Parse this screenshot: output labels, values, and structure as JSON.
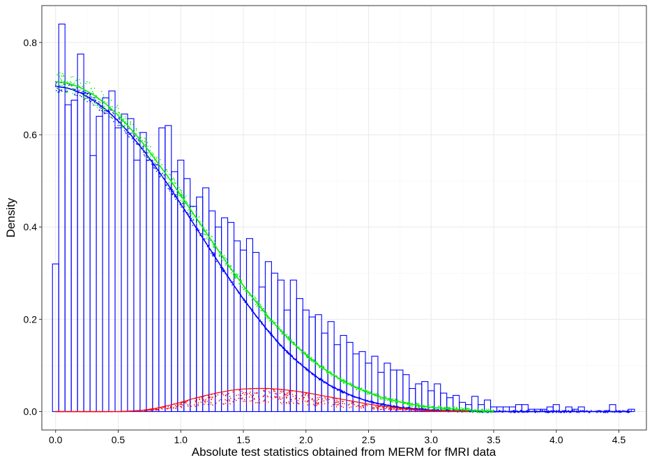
{
  "chart_data": {
    "type": "bar",
    "title": "",
    "xlabel": "Absolute test statistics obtained from MERM for fMRI data",
    "ylabel": "Density",
    "xlim": [
      -0.11,
      4.72
    ],
    "ylim": [
      -0.04,
      0.88
    ],
    "x_ticks": [
      0.0,
      0.5,
      1.0,
      1.5,
      2.0,
      2.5,
      3.0,
      3.5,
      4.0,
      4.5
    ],
    "x_tick_labels": [
      "0.0",
      "0.5",
      "1.0",
      "1.5",
      "2.0",
      "2.5",
      "3.0",
      "3.5",
      "4.0",
      "4.5"
    ],
    "y_ticks": [
      0.0,
      0.2,
      0.4,
      0.6,
      0.8
    ],
    "y_tick_labels": [
      "0.0",
      "0.2",
      "0.4",
      "0.6",
      "0.8"
    ],
    "grid": true,
    "legend": "none",
    "colors": {
      "histogram": "#0000ff",
      "blue_curve": "#0000ff",
      "green_curve": "#00ee00",
      "red_curve": "#ff0000",
      "grid_major": "#ebebeb",
      "grid_minor": "#f5f5f5"
    },
    "histogram": {
      "bin_width": 0.05,
      "bin_start": -0.025,
      "densities": [
        0.32,
        0.84,
        0.665,
        0.675,
        0.775,
        0.69,
        0.555,
        0.64,
        0.68,
        0.695,
        0.615,
        0.645,
        0.635,
        0.545,
        0.605,
        0.545,
        0.535,
        0.615,
        0.62,
        0.52,
        0.545,
        0.505,
        0.445,
        0.465,
        0.485,
        0.435,
        0.4,
        0.42,
        0.41,
        0.37,
        0.35,
        0.375,
        0.345,
        0.27,
        0.325,
        0.3,
        0.285,
        0.22,
        0.285,
        0.245,
        0.22,
        0.205,
        0.21,
        0.17,
        0.195,
        0.145,
        0.165,
        0.15,
        0.125,
        0.13,
        0.105,
        0.12,
        0.085,
        0.105,
        0.09,
        0.09,
        0.08,
        0.05,
        0.06,
        0.065,
        0.045,
        0.06,
        0.04,
        0.03,
        0.035,
        0.02,
        0.015,
        0.033,
        0.015,
        0.025,
        0.01,
        0.01,
        0.01,
        0.01,
        0.015,
        0.015,
        0.005,
        0.005,
        0.005,
        0.01,
        0.015,
        0.0,
        0.01,
        0.005,
        0.01,
        0.0,
        0.0,
        0.0,
        0.0,
        0.015,
        0.0,
        0.0,
        0.005
      ]
    },
    "series": [
      {
        "color": "blue",
        "x": [
          0.0,
          0.1,
          0.2,
          0.3,
          0.4,
          0.5,
          0.6,
          0.7,
          0.8,
          0.9,
          1.0,
          1.1,
          1.2,
          1.3,
          1.4,
          1.5,
          1.6,
          1.7,
          1.8,
          1.9,
          2.0,
          2.1,
          2.2,
          2.3,
          2.4,
          2.5,
          2.6,
          2.7,
          2.8,
          2.9,
          3.0,
          3.1,
          3.2,
          3.3,
          3.4,
          3.5,
          3.6,
          3.7,
          3.8,
          3.9,
          4.0,
          4.1,
          4.2,
          4.3,
          4.4,
          4.5,
          4.6
        ],
        "y": [
          0.705,
          0.701,
          0.691,
          0.675,
          0.655,
          0.63,
          0.6,
          0.567,
          0.53,
          0.491,
          0.45,
          0.408,
          0.366,
          0.324,
          0.283,
          0.244,
          0.208,
          0.174,
          0.143,
          0.116,
          0.093,
          0.072,
          0.055,
          0.042,
          0.031,
          0.022,
          0.016,
          0.011,
          0.007,
          0.005,
          0.003,
          0.002,
          0.001,
          0.001,
          0.0,
          0.0,
          0.0,
          0.0,
          0.0,
          0.0,
          0.0,
          0.0,
          0.0,
          0.0,
          0.0,
          0.0,
          0.0
        ]
      },
      {
        "color": "green",
        "x": [
          0.0,
          0.1,
          0.2,
          0.3,
          0.4,
          0.5,
          0.6,
          0.7,
          0.8,
          0.9,
          1.0,
          1.1,
          1.2,
          1.3,
          1.4,
          1.5,
          1.6,
          1.7,
          1.8,
          1.9,
          2.0,
          2.1,
          2.2,
          2.3,
          2.4,
          2.5,
          2.6,
          2.7,
          2.8,
          2.9,
          3.0,
          3.1,
          3.2,
          3.3,
          3.4,
          3.5
        ],
        "y": [
          0.715,
          0.712,
          0.702,
          0.687,
          0.667,
          0.642,
          0.613,
          0.581,
          0.545,
          0.508,
          0.469,
          0.429,
          0.389,
          0.349,
          0.31,
          0.273,
          0.238,
          0.205,
          0.175,
          0.148,
          0.123,
          0.101,
          0.082,
          0.066,
          0.052,
          0.041,
          0.031,
          0.024,
          0.018,
          0.013,
          0.009,
          0.007,
          0.005,
          0.003,
          0.002,
          0.001
        ]
      },
      {
        "color": "red",
        "x": [
          0.0,
          0.5,
          0.6,
          0.7,
          0.8,
          0.9,
          1.0,
          1.1,
          1.2,
          1.3,
          1.4,
          1.5,
          1.6,
          1.7,
          1.8,
          1.9,
          2.0,
          2.1,
          2.2,
          2.3,
          2.4,
          2.5,
          2.6,
          2.7,
          2.8,
          2.9,
          3.0,
          3.1,
          3.2,
          3.3
        ],
        "y": [
          0.0,
          0.0,
          0.001,
          0.003,
          0.007,
          0.013,
          0.02,
          0.028,
          0.035,
          0.041,
          0.046,
          0.049,
          0.05,
          0.05,
          0.048,
          0.045,
          0.041,
          0.036,
          0.031,
          0.026,
          0.021,
          0.016,
          0.012,
          0.009,
          0.006,
          0.004,
          0.002,
          0.001,
          0.001,
          0.0
        ]
      }
    ]
  }
}
